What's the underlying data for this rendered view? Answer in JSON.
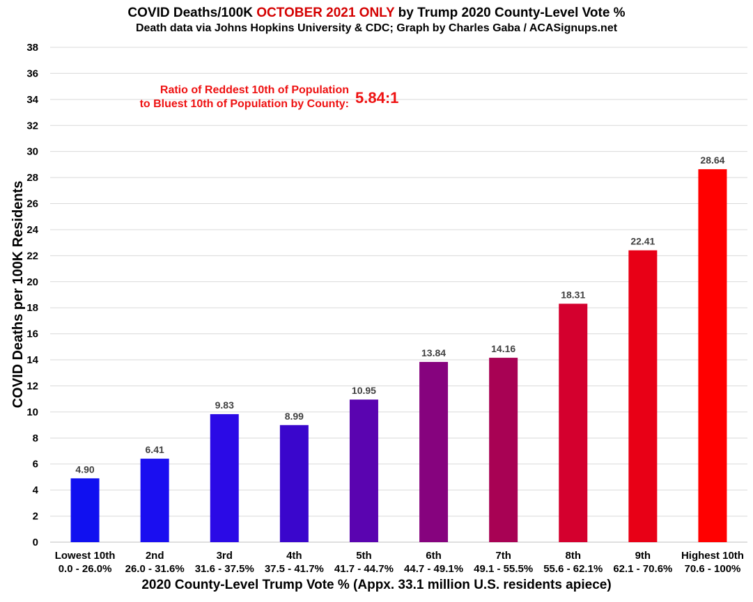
{
  "chart_data": {
    "type": "bar",
    "title_pre": "COVID Deaths/100K ",
    "title_highlight": "OCTOBER 2021 ONLY",
    "title_post": " by Trump 2020 County-Level Vote %",
    "subtitle": "Death data via Johns Hopkins University & CDC; Graph by Charles Gaba / ACASignups.net",
    "annotation_line1": "Ratio of Reddest 10th of Population",
    "annotation_line2": "to Bluest 10th of Population by County:",
    "annotation_value": "5.84:1",
    "xlabel": "2020 County-Level Trump Vote % (Appx. 33.1 million U.S. residents apiece)",
    "ylabel": "COVID Deaths per 100K Residents",
    "ylim": [
      0,
      38
    ],
    "yticks": [
      0,
      2,
      4,
      6,
      8,
      10,
      12,
      14,
      16,
      18,
      20,
      22,
      24,
      26,
      28,
      30,
      32,
      34,
      36,
      38
    ],
    "grid": true,
    "categories": [
      {
        "name": "Lowest 10th",
        "range": "0.0 - 26.0%"
      },
      {
        "name": "2nd",
        "range": "26.0 - 31.6%"
      },
      {
        "name": "3rd",
        "range": "31.6 - 37.5%"
      },
      {
        "name": "4th",
        "range": "37.5 - 41.7%"
      },
      {
        "name": "5th",
        "range": "41.7 - 44.7%"
      },
      {
        "name": "6th",
        "range": "44.7 - 49.1%"
      },
      {
        "name": "7th",
        "range": "49.1 - 55.5%"
      },
      {
        "name": "8th",
        "range": "55.6 - 62.1%"
      },
      {
        "name": "9th",
        "range": "62.1 - 70.6%"
      },
      {
        "name": "Highest 10th",
        "range": "70.6 - 100%"
      }
    ],
    "values": [
      4.9,
      6.41,
      9.83,
      8.99,
      10.95,
      13.84,
      14.16,
      18.31,
      22.41,
      28.64
    ],
    "value_labels": [
      "4.90",
      "6.41",
      "9.83",
      "8.99",
      "10.95",
      "13.84",
      "14.16",
      "18.31",
      "22.41",
      "28.64"
    ],
    "colors": [
      "#1010f0",
      "#1a0ef0",
      "#2b0ae6",
      "#3a06cc",
      "#5a04b0",
      "#86037e",
      "#a80254",
      "#d4002e",
      "#e80016",
      "#ff0000"
    ]
  }
}
